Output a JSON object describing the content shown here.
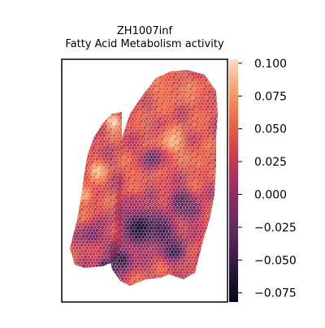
{
  "chart_data": {
    "type": "spatial-heatmap",
    "title": "ZH1007inf\nFatty Acid Metabolism activity",
    "title_lines": [
      "ZH1007inf",
      "Fatty Acid Metabolism activity"
    ],
    "colorbar": {
      "colormap": "rocket",
      "range": [
        -0.082,
        0.103
      ],
      "ticks": [
        0.1,
        0.075,
        0.05,
        0.025,
        0.0,
        -0.025,
        -0.05,
        -0.075
      ],
      "tick_labels": [
        "0.100",
        "0.075",
        "0.050",
        "0.025",
        "0.000",
        "−0.025",
        "−0.050",
        "−0.075"
      ]
    },
    "axes": {
      "x_ticks": false,
      "y_ticks": false,
      "frame": true
    },
    "tissue_regions": [
      {
        "name": "left-strip",
        "mean_activity": 0.035,
        "notes": "high activity along upper edge, mixed toward bottom"
      },
      {
        "name": "main-body-upper",
        "mean_activity": 0.06,
        "notes": "predominantly high (peach/orange)"
      },
      {
        "name": "main-body-center",
        "mean_activity": 0.0,
        "notes": "mixed purple/red patches"
      },
      {
        "name": "main-body-lower-left",
        "mean_activity": -0.045,
        "notes": "dark purple cluster, darkest spots near bottom-left"
      },
      {
        "name": "main-body-right",
        "mean_activity": 0.04,
        "notes": "orange/red"
      }
    ]
  }
}
